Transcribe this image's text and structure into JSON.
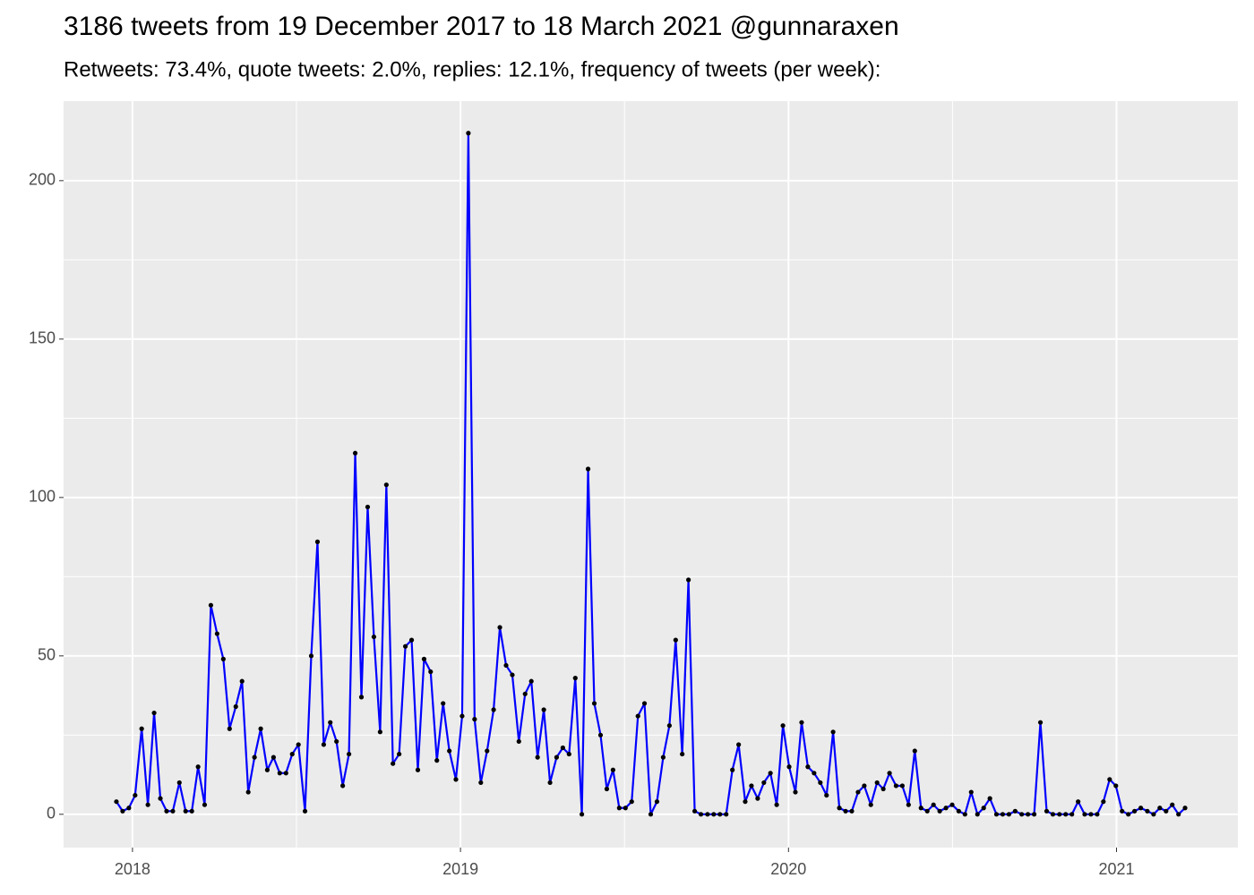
{
  "chart_data": {
    "type": "line",
    "title": "3186 tweets from 19 December 2017 to 18 March 2021 @gunnaraxen",
    "subtitle": "Retweets: 73.4%, quote tweets: 2.0%, replies: 12.1%, frequency of tweets (per week):",
    "x": [
      2017.951,
      2017.97,
      2017.989,
      2018.008,
      2018.028,
      2018.047,
      2018.066,
      2018.085,
      2018.104,
      2018.123,
      2018.143,
      2018.162,
      2018.181,
      2018.2,
      2018.22,
      2018.239,
      2018.258,
      2018.277,
      2018.296,
      2018.315,
      2018.334,
      2018.353,
      2018.372,
      2018.391,
      2018.411,
      2018.43,
      2018.449,
      2018.468,
      2018.487,
      2018.506,
      2018.526,
      2018.545,
      2018.564,
      2018.583,
      2018.603,
      2018.622,
      2018.641,
      2018.66,
      2018.679,
      2018.698,
      2018.717,
      2018.736,
      2018.755,
      2018.774,
      2018.794,
      2018.813,
      2018.832,
      2018.851,
      2018.87,
      2018.889,
      2018.909,
      2018.928,
      2018.947,
      2018.966,
      2018.986,
      2019.005,
      2019.024,
      2019.043,
      2019.062,
      2019.081,
      2019.101,
      2019.12,
      2019.139,
      2019.158,
      2019.178,
      2019.197,
      2019.216,
      2019.235,
      2019.254,
      2019.273,
      2019.293,
      2019.312,
      2019.331,
      2019.35,
      2019.37,
      2019.389,
      2019.408,
      2019.427,
      2019.446,
      2019.465,
      2019.484,
      2019.503,
      2019.522,
      2019.541,
      2019.561,
      2019.58,
      2019.599,
      2019.618,
      2019.637,
      2019.656,
      2019.676,
      2019.695,
      2019.714,
      2019.733,
      2019.753,
      2019.772,
      2019.791,
      2019.81,
      2019.829,
      2019.848,
      2019.868,
      2019.887,
      2019.906,
      2019.925,
      2019.945,
      2019.964,
      2019.983,
      2020.002,
      2020.021,
      2020.04,
      2020.059,
      2020.078,
      2020.097,
      2020.116,
      2020.136,
      2020.155,
      2020.174,
      2020.193,
      2020.212,
      2020.231,
      2020.251,
      2020.27,
      2020.289,
      2020.308,
      2020.328,
      2020.347,
      2020.366,
      2020.385,
      2020.404,
      2020.423,
      2020.442,
      2020.461,
      2020.48,
      2020.499,
      2020.519,
      2020.538,
      2020.557,
      2020.576,
      2020.595,
      2020.614,
      2020.634,
      2020.653,
      2020.672,
      2020.691,
      2020.711,
      2020.73,
      2020.749,
      2020.768,
      2020.787,
      2020.806,
      2020.826,
      2020.845,
      2020.864,
      2020.883,
      2020.903,
      2020.922,
      2020.941,
      2020.96,
      2020.979,
      2020.998,
      2021.017,
      2021.036,
      2021.055,
      2021.074,
      2021.094,
      2021.113,
      2021.132,
      2021.151,
      2021.17,
      2021.189,
      2021.209
    ],
    "values": [
      4,
      1,
      2,
      6,
      27,
      3,
      32,
      5,
      1,
      1,
      10,
      1,
      1,
      15,
      3,
      66,
      57,
      49,
      27,
      34,
      42,
      7,
      18,
      27,
      14,
      18,
      13,
      13,
      19,
      22,
      1,
      50,
      86,
      22,
      29,
      23,
      9,
      19,
      114,
      37,
      97,
      56,
      26,
      104,
      16,
      19,
      53,
      55,
      14,
      49,
      45,
      17,
      35,
      20,
      11,
      31,
      215,
      30,
      10,
      20,
      33,
      59,
      47,
      44,
      23,
      38,
      42,
      18,
      33,
      10,
      18,
      21,
      19,
      43,
      0,
      109,
      35,
      25,
      8,
      14,
      2,
      2,
      4,
      31,
      35,
      0,
      4,
      18,
      28,
      55,
      19,
      74,
      1,
      0,
      0,
      0,
      0,
      0,
      14,
      22,
      4,
      9,
      5,
      10,
      13,
      3,
      28,
      15,
      7,
      29,
      15,
      13,
      10,
      6,
      26,
      2,
      1,
      1,
      7,
      9,
      3,
      10,
      8,
      13,
      9,
      9,
      3,
      20,
      2,
      1,
      3,
      1,
      2,
      3,
      1,
      0,
      7,
      0,
      2,
      5,
      0,
      0,
      0,
      1,
      0,
      0,
      0,
      29,
      1,
      0,
      0,
      0,
      0,
      4,
      0,
      0,
      0,
      4,
      11,
      9,
      1,
      0,
      1,
      2,
      1,
      0,
      2,
      1,
      3,
      0,
      2
    ],
    "color": "#0000ff",
    "point_color": "#000000",
    "xlim": [
      2017.79,
      2021.37
    ],
    "xticks": [
      2018,
      2019,
      2020,
      2021
    ],
    "ylim": [
      -10.5,
      225.1
    ],
    "yticks": [
      0,
      50,
      100,
      150,
      200
    ],
    "grid": true
  }
}
